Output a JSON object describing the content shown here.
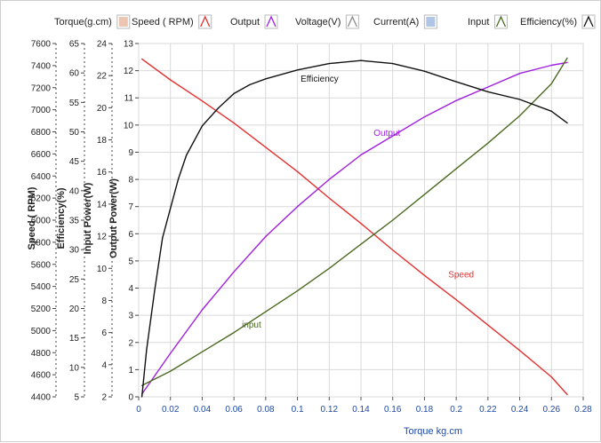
{
  "legend": [
    {
      "label": "Torque(g.cm)",
      "color": "#e8b8a0",
      "swatch": "box"
    },
    {
      "label": "Speed ( RPM)",
      "color": "#e53030",
      "swatch": "line"
    },
    {
      "label": "Output",
      "color": "#a020e0",
      "swatch": "line"
    },
    {
      "label": "Voltage(V)",
      "color": "#8a8a8a",
      "swatch": "line"
    },
    {
      "label": "Current(A)",
      "color": "#9db8e0",
      "swatch": "box"
    },
    {
      "label": "Input",
      "color": "#4a6a20",
      "swatch": "line"
    },
    {
      "label": "Efficiency(%)",
      "color": "#111111",
      "swatch": "line"
    }
  ],
  "chart_data": {
    "type": "line",
    "xlabel": "Torque kg.cm",
    "xlim": [
      0,
      0.28
    ],
    "xticks": [
      "0",
      "0.02",
      "0.04",
      "0.06",
      "0.08",
      "0.1",
      "0.12",
      "0.14",
      "0.16",
      "0.18",
      "0.2",
      "0.22",
      "0.24",
      "0.26",
      "0.28"
    ],
    "axes": [
      {
        "id": "speed",
        "title": "Speed ( RPM)",
        "range": [
          4400,
          7600
        ],
        "ticks": [
          "4400",
          "4600",
          "4800",
          "5000",
          "5200",
          "5400",
          "5600",
          "5800",
          "6000",
          "6200",
          "6400",
          "6600",
          "6800",
          "7000",
          "7200",
          "7400",
          "7600"
        ]
      },
      {
        "id": "efficiency",
        "title": "Efficiency(%)",
        "range": [
          5,
          65
        ],
        "ticks": [
          "5",
          "10",
          "15",
          "20",
          "25",
          "30",
          "35",
          "40",
          "45",
          "50",
          "55",
          "60",
          "65"
        ]
      },
      {
        "id": "input",
        "title": "Input Power(W)",
        "range": [
          2,
          24
        ],
        "ticks": [
          "2",
          "4",
          "6",
          "8",
          "10",
          "12",
          "14",
          "16",
          "18",
          "20",
          "22",
          "24"
        ]
      },
      {
        "id": "output",
        "title": "Output Power(W)",
        "range": [
          0,
          13
        ],
        "ticks": [
          "0",
          "1",
          "2",
          "3",
          "4",
          "5",
          "6",
          "7",
          "8",
          "9",
          "10",
          "11",
          "12",
          "13"
        ]
      }
    ],
    "series": [
      {
        "name": "Speed",
        "axis": "speed",
        "color": "#e53030",
        "annotation": "Speed",
        "ann_at": [
          0.195,
          5480
        ],
        "x": [
          0.002,
          0.02,
          0.04,
          0.06,
          0.08,
          0.1,
          0.12,
          0.14,
          0.16,
          0.18,
          0.2,
          0.22,
          0.24,
          0.26,
          0.27
        ],
        "y": [
          7460,
          7270,
          7080,
          6880,
          6660,
          6440,
          6200,
          5970,
          5730,
          5500,
          5280,
          5050,
          4820,
          4580,
          4420
        ]
      },
      {
        "name": "Output",
        "axis": "output",
        "color": "#a020e0",
        "annotation": "Output",
        "ann_at": [
          0.148,
          9.6
        ],
        "x": [
          0.002,
          0.02,
          0.04,
          0.06,
          0.08,
          0.1,
          0.12,
          0.14,
          0.16,
          0.18,
          0.2,
          0.22,
          0.24,
          0.26,
          0.27
        ],
        "y": [
          0.1,
          1.6,
          3.2,
          4.6,
          5.9,
          7.0,
          8.0,
          8.9,
          9.6,
          10.3,
          10.9,
          11.4,
          11.9,
          12.2,
          12.3
        ]
      },
      {
        "name": "input",
        "axis": "input",
        "color": "#4a6a20",
        "annotation": "input",
        "ann_at": [
          0.065,
          6.3
        ],
        "x": [
          0.002,
          0.02,
          0.04,
          0.06,
          0.08,
          0.1,
          0.12,
          0.14,
          0.16,
          0.18,
          0.2,
          0.22,
          0.24,
          0.26,
          0.27
        ],
        "y": [
          2.7,
          3.6,
          4.8,
          6.0,
          7.3,
          8.6,
          10.0,
          11.5,
          13.0,
          14.6,
          16.2,
          17.8,
          19.5,
          21.5,
          23.1
        ]
      },
      {
        "name": "Efficiency",
        "axis": "efficiency",
        "color": "#111111",
        "annotation": "Efficiency",
        "ann_at": [
          0.102,
          58.5
        ],
        "x": [
          0.002,
          0.005,
          0.01,
          0.015,
          0.02,
          0.025,
          0.03,
          0.04,
          0.05,
          0.06,
          0.07,
          0.08,
          0.1,
          0.12,
          0.14,
          0.16,
          0.18,
          0.2,
          0.22,
          0.24,
          0.26,
          0.27
        ],
        "y": [
          5,
          13,
          23,
          32,
          37,
          42,
          46,
          51,
          54,
          56.5,
          58,
          59,
          60.5,
          61.6,
          62.1,
          61.6,
          60.3,
          58.5,
          56.8,
          55.5,
          53.5,
          51.5
        ]
      }
    ]
  }
}
